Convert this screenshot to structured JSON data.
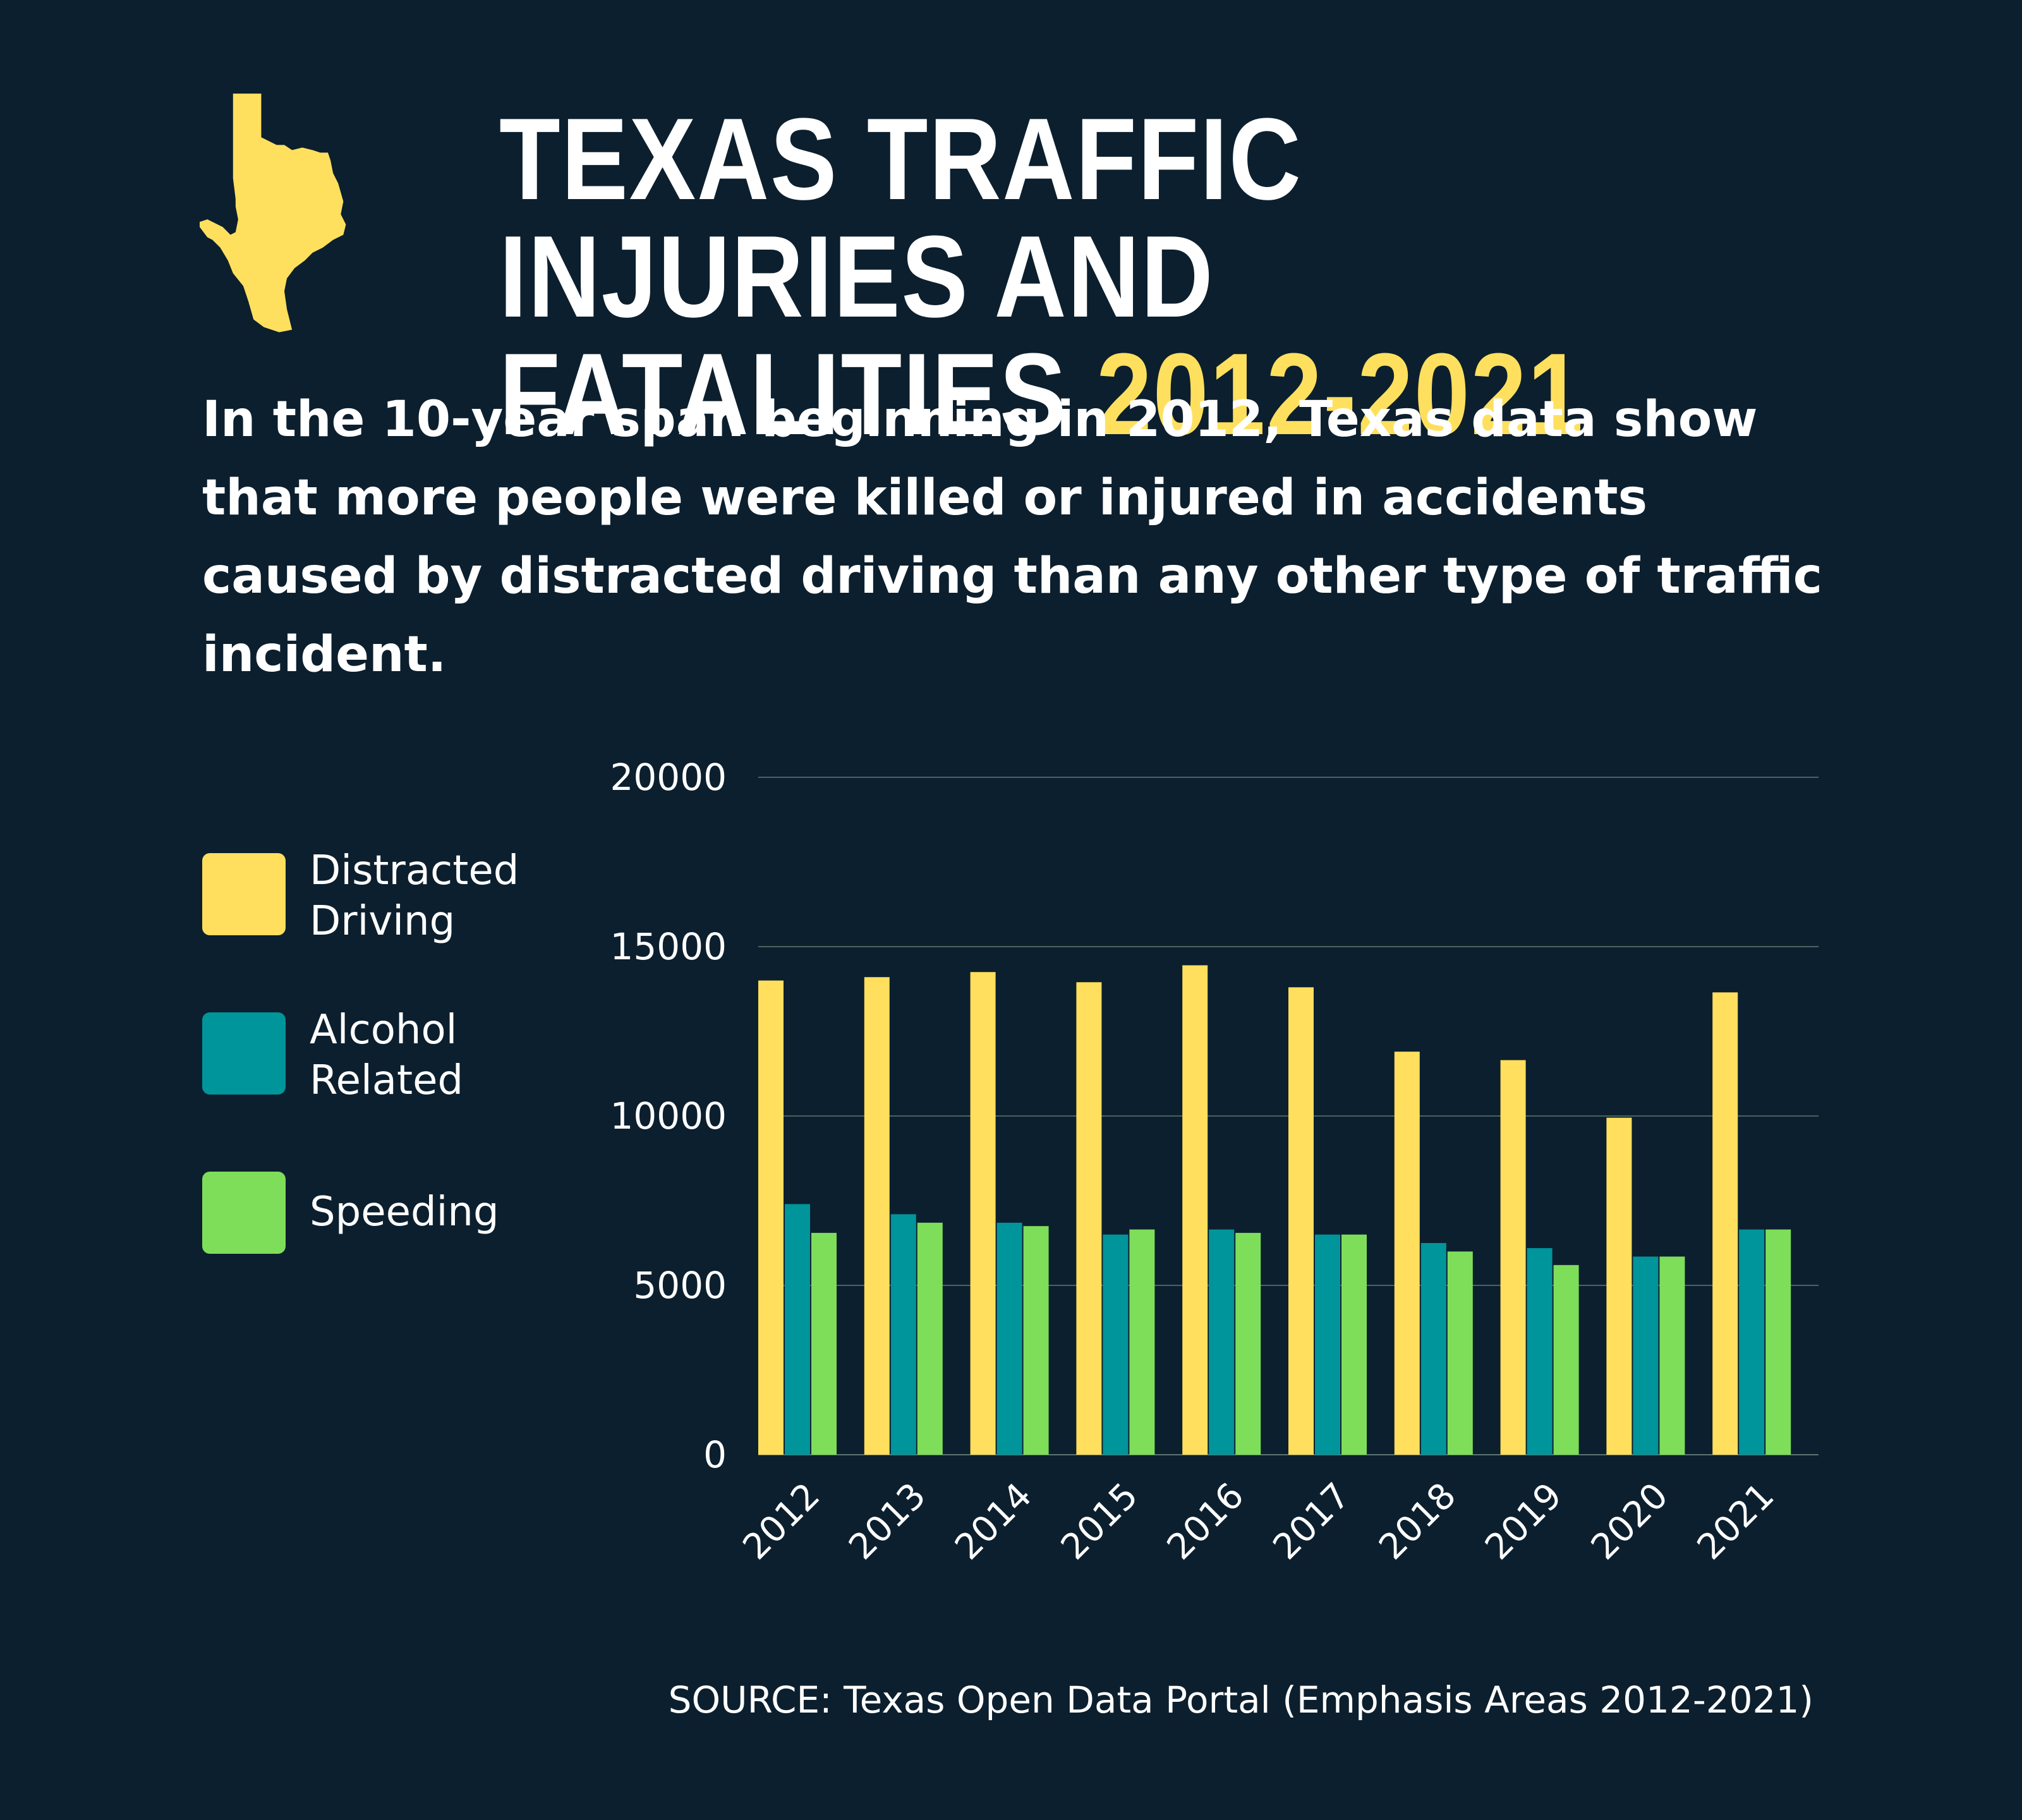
{
  "header": {
    "title_line1": "TEXAS TRAFFIC INJURIES AND",
    "title_line2_prefix": "FATALITIES ",
    "title_line2_accent": "2012-2021",
    "map_icon": "texas-map-icon"
  },
  "intro": {
    "text": "In the 10-year span beginning in 2012, Texas data show that more people were killed or injured in accidents caused by distracted driving than any other type of traffic incident."
  },
  "legend": {
    "items": [
      {
        "label_line1": "Distracted",
        "label_line2": "Driving"
      },
      {
        "label_line1": "Alcohol",
        "label_line2": "Related"
      },
      {
        "label_line1": "Speeding",
        "label_line2": ""
      }
    ]
  },
  "colors": {
    "background": "#0c1f2e",
    "accent": "#ffe05e",
    "distracted": "#ffdf5d",
    "alcohol": "#00959a",
    "speeding": "#7ede5a",
    "grid": "#4a6360"
  },
  "chart_data": {
    "type": "bar",
    "categories": [
      "2012",
      "2013",
      "2014",
      "2015",
      "2016",
      "2017",
      "2018",
      "2019",
      "2020",
      "2021"
    ],
    "series": [
      {
        "name": "Distracted Driving",
        "values": [
          14000,
          14100,
          14250,
          13950,
          14450,
          13800,
          11900,
          11650,
          9950,
          13650
        ]
      },
      {
        "name": "Alcohol Related",
        "values": [
          7400,
          7100,
          6850,
          6500,
          6650,
          6500,
          6250,
          6100,
          5850,
          6650
        ]
      },
      {
        "name": "Speeding",
        "values": [
          6550,
          6850,
          6750,
          6650,
          6550,
          6500,
          6000,
          5600,
          5850,
          6650
        ]
      }
    ],
    "yticks": [
      0,
      5000,
      10000,
      15000,
      20000
    ],
    "ylim": [
      0,
      20000
    ],
    "grid": true,
    "legend": "left"
  },
  "source": {
    "text": "SOURCE: Texas Open Data Portal (Emphasis Areas 2012-2021)"
  }
}
